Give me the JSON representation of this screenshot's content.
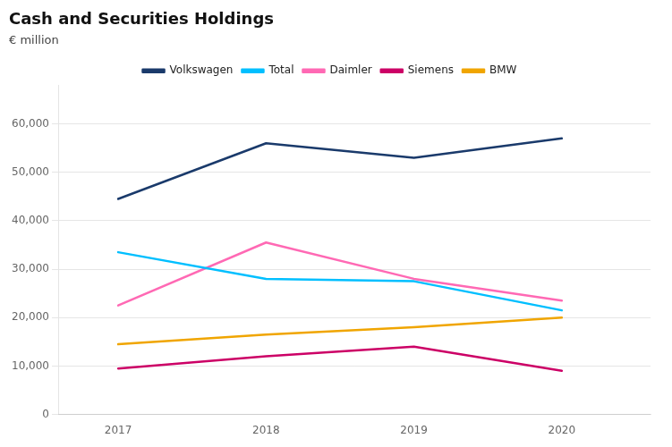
{
  "chart_data": {
    "type": "line",
    "title": "Cash and Securities Holdings",
    "subtitle": "€ million",
    "x": [
      2017,
      2018,
      2019,
      2020
    ],
    "series": [
      {
        "name": "Volkswagen",
        "color": "#1a3a6b",
        "values": [
          44500,
          56000,
          53000,
          57000
        ]
      },
      {
        "name": "Total",
        "color": "#00bfff",
        "values": [
          33500,
          28000,
          27500,
          21500
        ]
      },
      {
        "name": "Daimler",
        "color": "#ff69b4",
        "values": [
          22500,
          35500,
          28000,
          23500
        ]
      },
      {
        "name": "Siemens",
        "color": "#cc0066",
        "values": [
          9500,
          12000,
          14000,
          9000
        ]
      },
      {
        "name": "BMW",
        "color": "#f0a500",
        "values": [
          14500,
          16500,
          18000,
          20000
        ]
      }
    ],
    "xlim": [
      2016.6,
      2020.6
    ],
    "xticks": [
      2017,
      2018,
      2019,
      2020
    ],
    "ylim": [
      0,
      68000
    ],
    "yticks": [
      0,
      {
        "value": 10000,
        "label": "10,000"
      },
      {
        "value": 20000,
        "label": "20,000"
      },
      {
        "value": 30000,
        "label": "30,000"
      },
      {
        "value": 40000,
        "label": "40,000"
      },
      {
        "value": 50000,
        "label": "50,000"
      },
      {
        "value": 60000,
        "label": "60,000"
      }
    ],
    "grid": "y",
    "legend": "top"
  }
}
